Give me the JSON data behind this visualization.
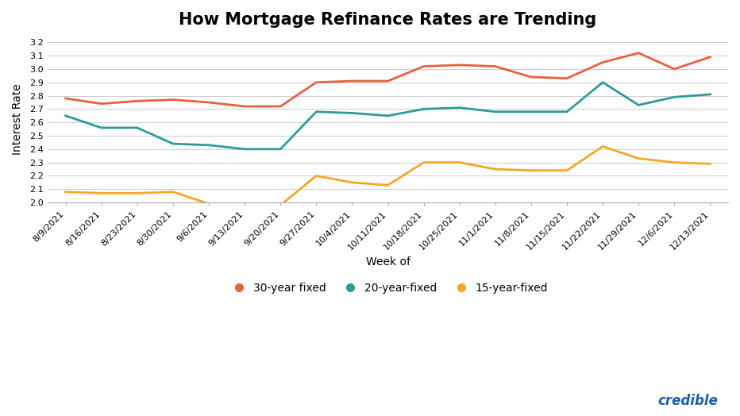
{
  "title": "How Mortgage Refinance Rates are Trending",
  "xlabel": "Week of",
  "ylabel": "Interest Rate",
  "xlabels": [
    "8/9/2021",
    "8/16/2021",
    "8/23/2021",
    "8/30/2021",
    "9/6/2021",
    "9/13/2021",
    "9/20/2021",
    "9/27/2021",
    "10/4/2021",
    "10/11/2021",
    "10/18/2021",
    "10/25/2021",
    "11/1/2021",
    "11/8/2021",
    "11/15/2021",
    "11/22/2021",
    "11/29/2021",
    "12/6/2021",
    "12/13/2021"
  ],
  "series_30yr": [
    2.78,
    2.74,
    2.76,
    2.77,
    2.75,
    2.72,
    2.72,
    2.9,
    2.91,
    2.91,
    3.02,
    3.03,
    3.02,
    2.94,
    2.93,
    3.05,
    3.12,
    3.0,
    3.09
  ],
  "series_20yr": [
    2.65,
    2.56,
    2.56,
    2.44,
    2.43,
    2.4,
    2.4,
    2.68,
    2.67,
    2.65,
    2.7,
    2.71,
    2.68,
    2.68,
    2.68,
    2.9,
    2.73,
    2.79,
    2.81
  ],
  "series_15yr": [
    2.08,
    2.07,
    2.07,
    2.08,
    1.99,
    1.98,
    1.98,
    2.2,
    2.15,
    2.13,
    2.3,
    2.3,
    2.25,
    2.24,
    2.24,
    2.42,
    2.33,
    2.3,
    2.29
  ],
  "color_30yr": "#E8603C",
  "color_20yr": "#2E9B9B",
  "color_15yr": "#F5A623",
  "ylim": [
    2.0,
    3.25
  ],
  "yticks": [
    2.0,
    2.1,
    2.2,
    2.3,
    2.4,
    2.5,
    2.6,
    2.7,
    2.8,
    2.9,
    3.0,
    3.1,
    3.2
  ],
  "bg_color": "#FFFFFF",
  "grid_color": "#CCCCCC",
  "title_fontsize": 15,
  "label_fontsize": 10,
  "tick_fontsize": 8,
  "legend_fontsize": 10,
  "line_width": 2.0,
  "credible_color": "#1A5FAD",
  "credible_text": "credible"
}
